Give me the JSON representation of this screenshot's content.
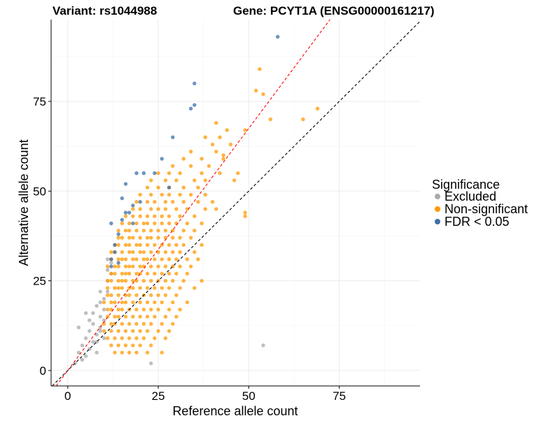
{
  "chart_data": {
    "type": "scatter",
    "title_left": "Variant: rs1044988",
    "title_right": "Gene: PCYT1A (ENSG00000161217)",
    "xlabel": "Reference allele count",
    "ylabel": "Alternative allele count",
    "xlim": [
      -4.6,
      97.3
    ],
    "ylim": [
      -4.3,
      97.8
    ],
    "xticks": [
      0,
      25,
      50,
      75
    ],
    "yticks": [
      0,
      25,
      50,
      75
    ],
    "grid": true,
    "reference_lines": [
      {
        "name": "identity",
        "slope": 1,
        "intercept": 0,
        "color": "#000000",
        "style": "dashed"
      },
      {
        "name": "fitted",
        "slope": 1.35,
        "intercept": 0,
        "color": "#FF0000",
        "style": "dashed"
      }
    ],
    "legend": {
      "title": "Significance",
      "position": "right",
      "entries": [
        {
          "label": "Excluded",
          "color": "#AAAAAA"
        },
        {
          "label": "Non-significant",
          "color": "#FF9900"
        },
        {
          "label": "FDR < 0.05",
          "color": "#3D6FA8"
        }
      ]
    },
    "series": [
      {
        "name": "Excluded",
        "color": "#AAAAAA",
        "points": [
          [
            2,
            2
          ],
          [
            3,
            5
          ],
          [
            4,
            7
          ],
          [
            5,
            4
          ],
          [
            5,
            9
          ],
          [
            6,
            6
          ],
          [
            6,
            11
          ],
          [
            7,
            8
          ],
          [
            7,
            13
          ],
          [
            8,
            10
          ],
          [
            8,
            5
          ],
          [
            9,
            12
          ],
          [
            9,
            15
          ],
          [
            10,
            9
          ],
          [
            10,
            17
          ],
          [
            10,
            20
          ],
          [
            9,
            22
          ],
          [
            8,
            18
          ],
          [
            11,
            25
          ],
          [
            11,
            28
          ],
          [
            12,
            30
          ],
          [
            7,
            16
          ],
          [
            6,
            14
          ],
          [
            4,
            3
          ],
          [
            11,
            22
          ],
          [
            12,
            27
          ],
          [
            10,
            14
          ],
          [
            9,
            11
          ],
          [
            8,
            8
          ],
          [
            23,
            2
          ],
          [
            54,
            7
          ],
          [
            3,
            12
          ],
          [
            5,
            16
          ],
          [
            9,
            19
          ],
          [
            11,
            31
          ]
        ]
      },
      {
        "name": "Non-significant",
        "color": "#FF9900",
        "rows": [
          {
            "y": 5,
            "x": [
              13,
              15,
              17,
              19,
              22,
              26
            ]
          },
          {
            "y": 7,
            "x": [
              12,
              14,
              16,
              18,
              20,
              23
            ]
          },
          {
            "y": 9,
            "x": [
              11,
              13,
              15,
              17,
              19,
              21,
              24,
              27
            ]
          },
          {
            "y": 11,
            "x": [
              10,
              12,
              14,
              16,
              18,
              20,
              22,
              25,
              28
            ]
          },
          {
            "y": 13,
            "x": [
              10,
              12,
              13,
              15,
              17,
              19,
              21,
              23,
              26,
              29
            ]
          },
          {
            "y": 15,
            "x": [
              11,
              13,
              14,
              16,
              18,
              20,
              22,
              24,
              27,
              30
            ]
          },
          {
            "y": 17,
            "x": [
              11,
              12,
              14,
              15,
              17,
              19,
              21,
              23,
              25,
              28,
              31
            ]
          },
          {
            "y": 19,
            "x": [
              10,
              12,
              13,
              15,
              16,
              18,
              20,
              22,
              24,
              26,
              29,
              33
            ]
          },
          {
            "y": 21,
            "x": [
              11,
              12,
              14,
              16,
              17,
              19,
              21,
              23,
              25,
              27,
              30
            ]
          },
          {
            "y": 23,
            "x": [
              11,
              13,
              14,
              15,
              17,
              18,
              20,
              22,
              24,
              26,
              28,
              31,
              35
            ]
          },
          {
            "y": 25,
            "x": [
              11,
              12,
              14,
              15,
              16,
              18,
              19,
              21,
              23,
              25,
              27,
              29,
              32,
              37
            ]
          },
          {
            "y": 27,
            "x": [
              12,
              13,
              15,
              16,
              17,
              19,
              20,
              22,
              24,
              26,
              28,
              30,
              33
            ]
          },
          {
            "y": 29,
            "x": [
              11,
              13,
              14,
              16,
              17,
              18,
              20,
              21,
              23,
              25,
              27,
              29,
              31,
              34
            ]
          },
          {
            "y": 31,
            "x": [
              12,
              14,
              15,
              16,
              18,
              19,
              21,
              22,
              24,
              26,
              28,
              30,
              33,
              36
            ]
          },
          {
            "y": 33,
            "x": [
              12,
              13,
              15,
              17,
              18,
              20,
              21,
              23,
              25,
              27,
              29,
              31,
              35
            ]
          },
          {
            "y": 35,
            "x": [
              13,
              14,
              16,
              17,
              19,
              20,
              22,
              24,
              26,
              28,
              30,
              32,
              37
            ]
          },
          {
            "y": 37,
            "x": [
              14,
              15,
              17,
              18,
              20,
              22,
              23,
              25,
              27,
              29,
              31,
              34
            ]
          },
          {
            "y": 39,
            "x": [
              14,
              16,
              17,
              19,
              21,
              23,
              25,
              27,
              29,
              32,
              35
            ]
          },
          {
            "y": 41,
            "x": [
              15,
              17,
              19,
              21,
              22,
              24,
              26,
              28,
              30,
              33,
              37
            ]
          },
          {
            "y": 43,
            "x": [
              16,
              18,
              20,
              22,
              24,
              26,
              28,
              31,
              35,
              49
            ]
          },
          {
            "y": 45,
            "x": [
              18,
              20,
              23,
              25,
              27,
              30,
              33,
              38,
              41
            ]
          },
          {
            "y": 47,
            "x": [
              19,
              22,
              24,
              27,
              29,
              32,
              36,
              40
            ]
          },
          {
            "y": 49,
            "x": [
              20,
              23,
              26,
              28,
              31,
              34,
              38
            ]
          },
          {
            "y": 51,
            "x": [
              22,
              25,
              28,
              32,
              36
            ]
          },
          {
            "y": 53,
            "x": [
              23,
              27,
              30,
              35,
              38,
              46
            ]
          },
          {
            "y": 55,
            "x": [
              25,
              28,
              31,
              37,
              42
            ]
          },
          {
            "y": 57,
            "x": [
              29,
              34,
              39
            ]
          },
          {
            "y": 59,
            "x": [
              32,
              37,
              43
            ]
          },
          {
            "y": 61,
            "x": [
              34,
              41
            ]
          },
          {
            "y": 63,
            "x": [
              40,
              45
            ]
          },
          {
            "y": 65,
            "x": [
              38,
              42
            ]
          },
          {
            "y": 67,
            "x": [
              44,
              49
            ]
          },
          {
            "y": 69,
            "x": [
              41
            ]
          }
        ],
        "points": [
          [
            52,
            78
          ],
          [
            54,
            77
          ],
          [
            53,
            84
          ],
          [
            65,
            70
          ],
          [
            69,
            73
          ],
          [
            56,
            70
          ],
          [
            43,
            60
          ],
          [
            49,
            44
          ],
          [
            47,
            55
          ]
        ]
      },
      {
        "name": "FDR < 0.05",
        "color": "#3D6FA8",
        "points": [
          [
            12,
            29
          ],
          [
            12,
            31
          ],
          [
            13,
            33
          ],
          [
            13,
            35
          ],
          [
            14,
            38
          ],
          [
            12,
            41
          ],
          [
            15,
            42
          ],
          [
            16,
            44
          ],
          [
            15,
            48
          ],
          [
            16,
            52
          ],
          [
            17,
            44
          ],
          [
            18,
            41
          ],
          [
            19,
            55
          ],
          [
            21,
            55
          ],
          [
            24,
            55
          ],
          [
            26,
            59
          ],
          [
            28,
            51
          ],
          [
            29,
            65
          ],
          [
            34,
            73
          ],
          [
            35,
            74
          ],
          [
            35,
            80
          ],
          [
            58,
            93
          ],
          [
            20,
            47
          ],
          [
            18,
            46
          ],
          [
            14,
            30
          ]
        ]
      }
    ]
  }
}
